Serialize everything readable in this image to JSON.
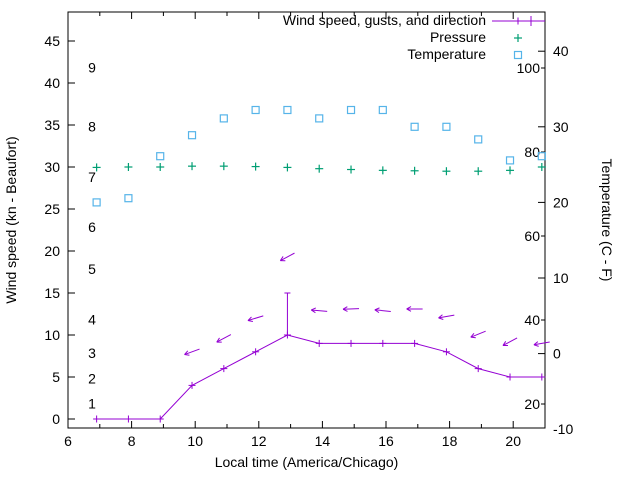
{
  "chart_data": {
    "type": "line",
    "title": "",
    "xlabel": "Local time (America/Chicago)",
    "ylabel_left": "Wind speed (kn - Beaufort)",
    "ylabel_right": "Temperature (C - F)",
    "x_range": [
      6,
      21
    ],
    "x_major_ticks": [
      6,
      8,
      10,
      12,
      14,
      16,
      18,
      20
    ],
    "x_minor_ticks": [
      7,
      9,
      11,
      13,
      15,
      17,
      19,
      21
    ],
    "y_left_ticks_kn": [
      0,
      5,
      10,
      15,
      20,
      25,
      30,
      35,
      40,
      45
    ],
    "beaufort_scale_labels": [
      {
        "label": "1",
        "kn": 1
      },
      {
        "label": "2",
        "kn": 4
      },
      {
        "label": "3",
        "kn": 7
      },
      {
        "label": "4",
        "kn": 11
      },
      {
        "label": "5",
        "kn": 17
      },
      {
        "label": "6",
        "kn": 22
      },
      {
        "label": "7",
        "kn": 28
      },
      {
        "label": "8",
        "kn": 34
      },
      {
        "label": "9",
        "kn": 41
      }
    ],
    "y_right_ticks_celsius": [
      -10,
      0,
      10,
      20,
      30,
      40
    ],
    "y_right_inner_ticks_fahrenheit": [
      20,
      40,
      60,
      80,
      100
    ],
    "legend": [
      {
        "label": "Wind speed, gusts, and direction",
        "color": "#9400d3",
        "marker": "line-gust-bar-plus"
      },
      {
        "label": "Pressure",
        "color": "#009e73",
        "marker": "plus"
      },
      {
        "label": "Temperature",
        "color": "#56b4e9",
        "marker": "open-square"
      }
    ],
    "x_hours": [
      6.9,
      7.9,
      8.9,
      9.9,
      10.9,
      11.9,
      12.9,
      13.9,
      14.9,
      15.9,
      16.9,
      17.9,
      18.9,
      19.9,
      20.9
    ],
    "wind": {
      "speed_kn": [
        0,
        0,
        0,
        4,
        6,
        8,
        10,
        9,
        9,
        9,
        9,
        8,
        6,
        5,
        5
      ],
      "gust_kn": [
        0,
        0,
        0,
        4,
        6,
        8,
        15,
        9,
        9,
        9,
        9,
        8,
        6,
        5,
        5
      ],
      "direction_arrows": [
        {
          "x": 9.9,
          "kn": 8.0,
          "angle_deg": 160
        },
        {
          "x": 10.9,
          "kn": 9.6,
          "angle_deg": 152
        },
        {
          "x": 11.9,
          "kn": 12.0,
          "angle_deg": 163
        },
        {
          "x": 12.9,
          "kn": 19.3,
          "angle_deg": 152
        },
        {
          "x": 13.9,
          "kn": 12.9,
          "angle_deg": 185
        },
        {
          "x": 14.9,
          "kn": 13.1,
          "angle_deg": 178
        },
        {
          "x": 15.9,
          "kn": 12.9,
          "angle_deg": 186
        },
        {
          "x": 16.9,
          "kn": 13.1,
          "angle_deg": 180
        },
        {
          "x": 17.9,
          "kn": 12.2,
          "angle_deg": 170
        },
        {
          "x": 18.9,
          "kn": 10.1,
          "angle_deg": 158
        },
        {
          "x": 19.9,
          "kn": 9.2,
          "angle_deg": 152
        },
        {
          "x": 20.9,
          "kn": 9.0,
          "angle_deg": 170
        }
      ]
    },
    "pressure": {
      "values": [
        29.95,
        30.0,
        30.0,
        30.1,
        30.1,
        30.05,
        29.95,
        29.8,
        29.7,
        29.6,
        29.55,
        29.5,
        29.5,
        29.6,
        30.0
      ]
    },
    "temperature": {
      "values_f": [
        68,
        69,
        79,
        84,
        88,
        90,
        90,
        88,
        90,
        90,
        86,
        86,
        83,
        78,
        79
      ]
    },
    "colors": {
      "wind": "#9400d3",
      "pressure": "#009e73",
      "temperature": "#56b4e9",
      "axis": "#000000",
      "background": "#ffffff"
    }
  }
}
